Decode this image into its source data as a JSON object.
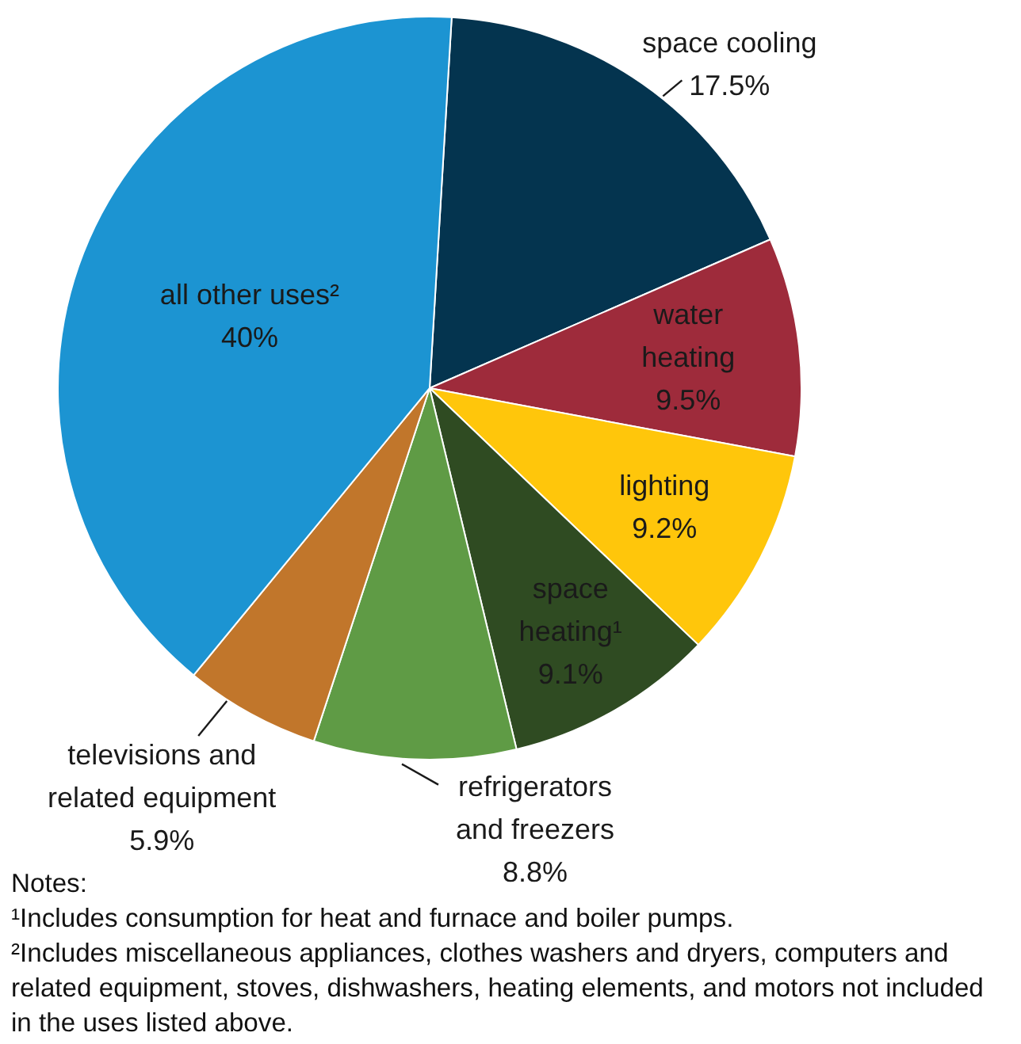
{
  "chart_data": {
    "type": "pie",
    "categories": [
      "space cooling",
      "water heating",
      "lighting",
      "space heating¹",
      "refrigerators and freezers",
      "televisions and related equipment",
      "all other uses²"
    ],
    "values": [
      17.5,
      9.5,
      9.2,
      9.1,
      8.8,
      5.9,
      40
    ],
    "colors": [
      "#04344f",
      "#9e2b3b",
      "#ffc60b",
      "#2f4b22",
      "#5f9b45",
      "#c1762b",
      "#1c94d2"
    ],
    "value_labels": [
      "17.5%",
      "9.5%",
      "9.2%",
      "9.1%",
      "8.8%",
      "5.9%",
      "40%"
    ],
    "legend": false,
    "annotations": [
      "Notes:",
      "¹Includes consumption for heat and furnace and boiler pumps.",
      "²Includes miscellaneous appliances, clothes washers and dryers, computers and related equipment, stoves, dishwashers, heating elements, and motors not included in the uses listed above."
    ]
  }
}
